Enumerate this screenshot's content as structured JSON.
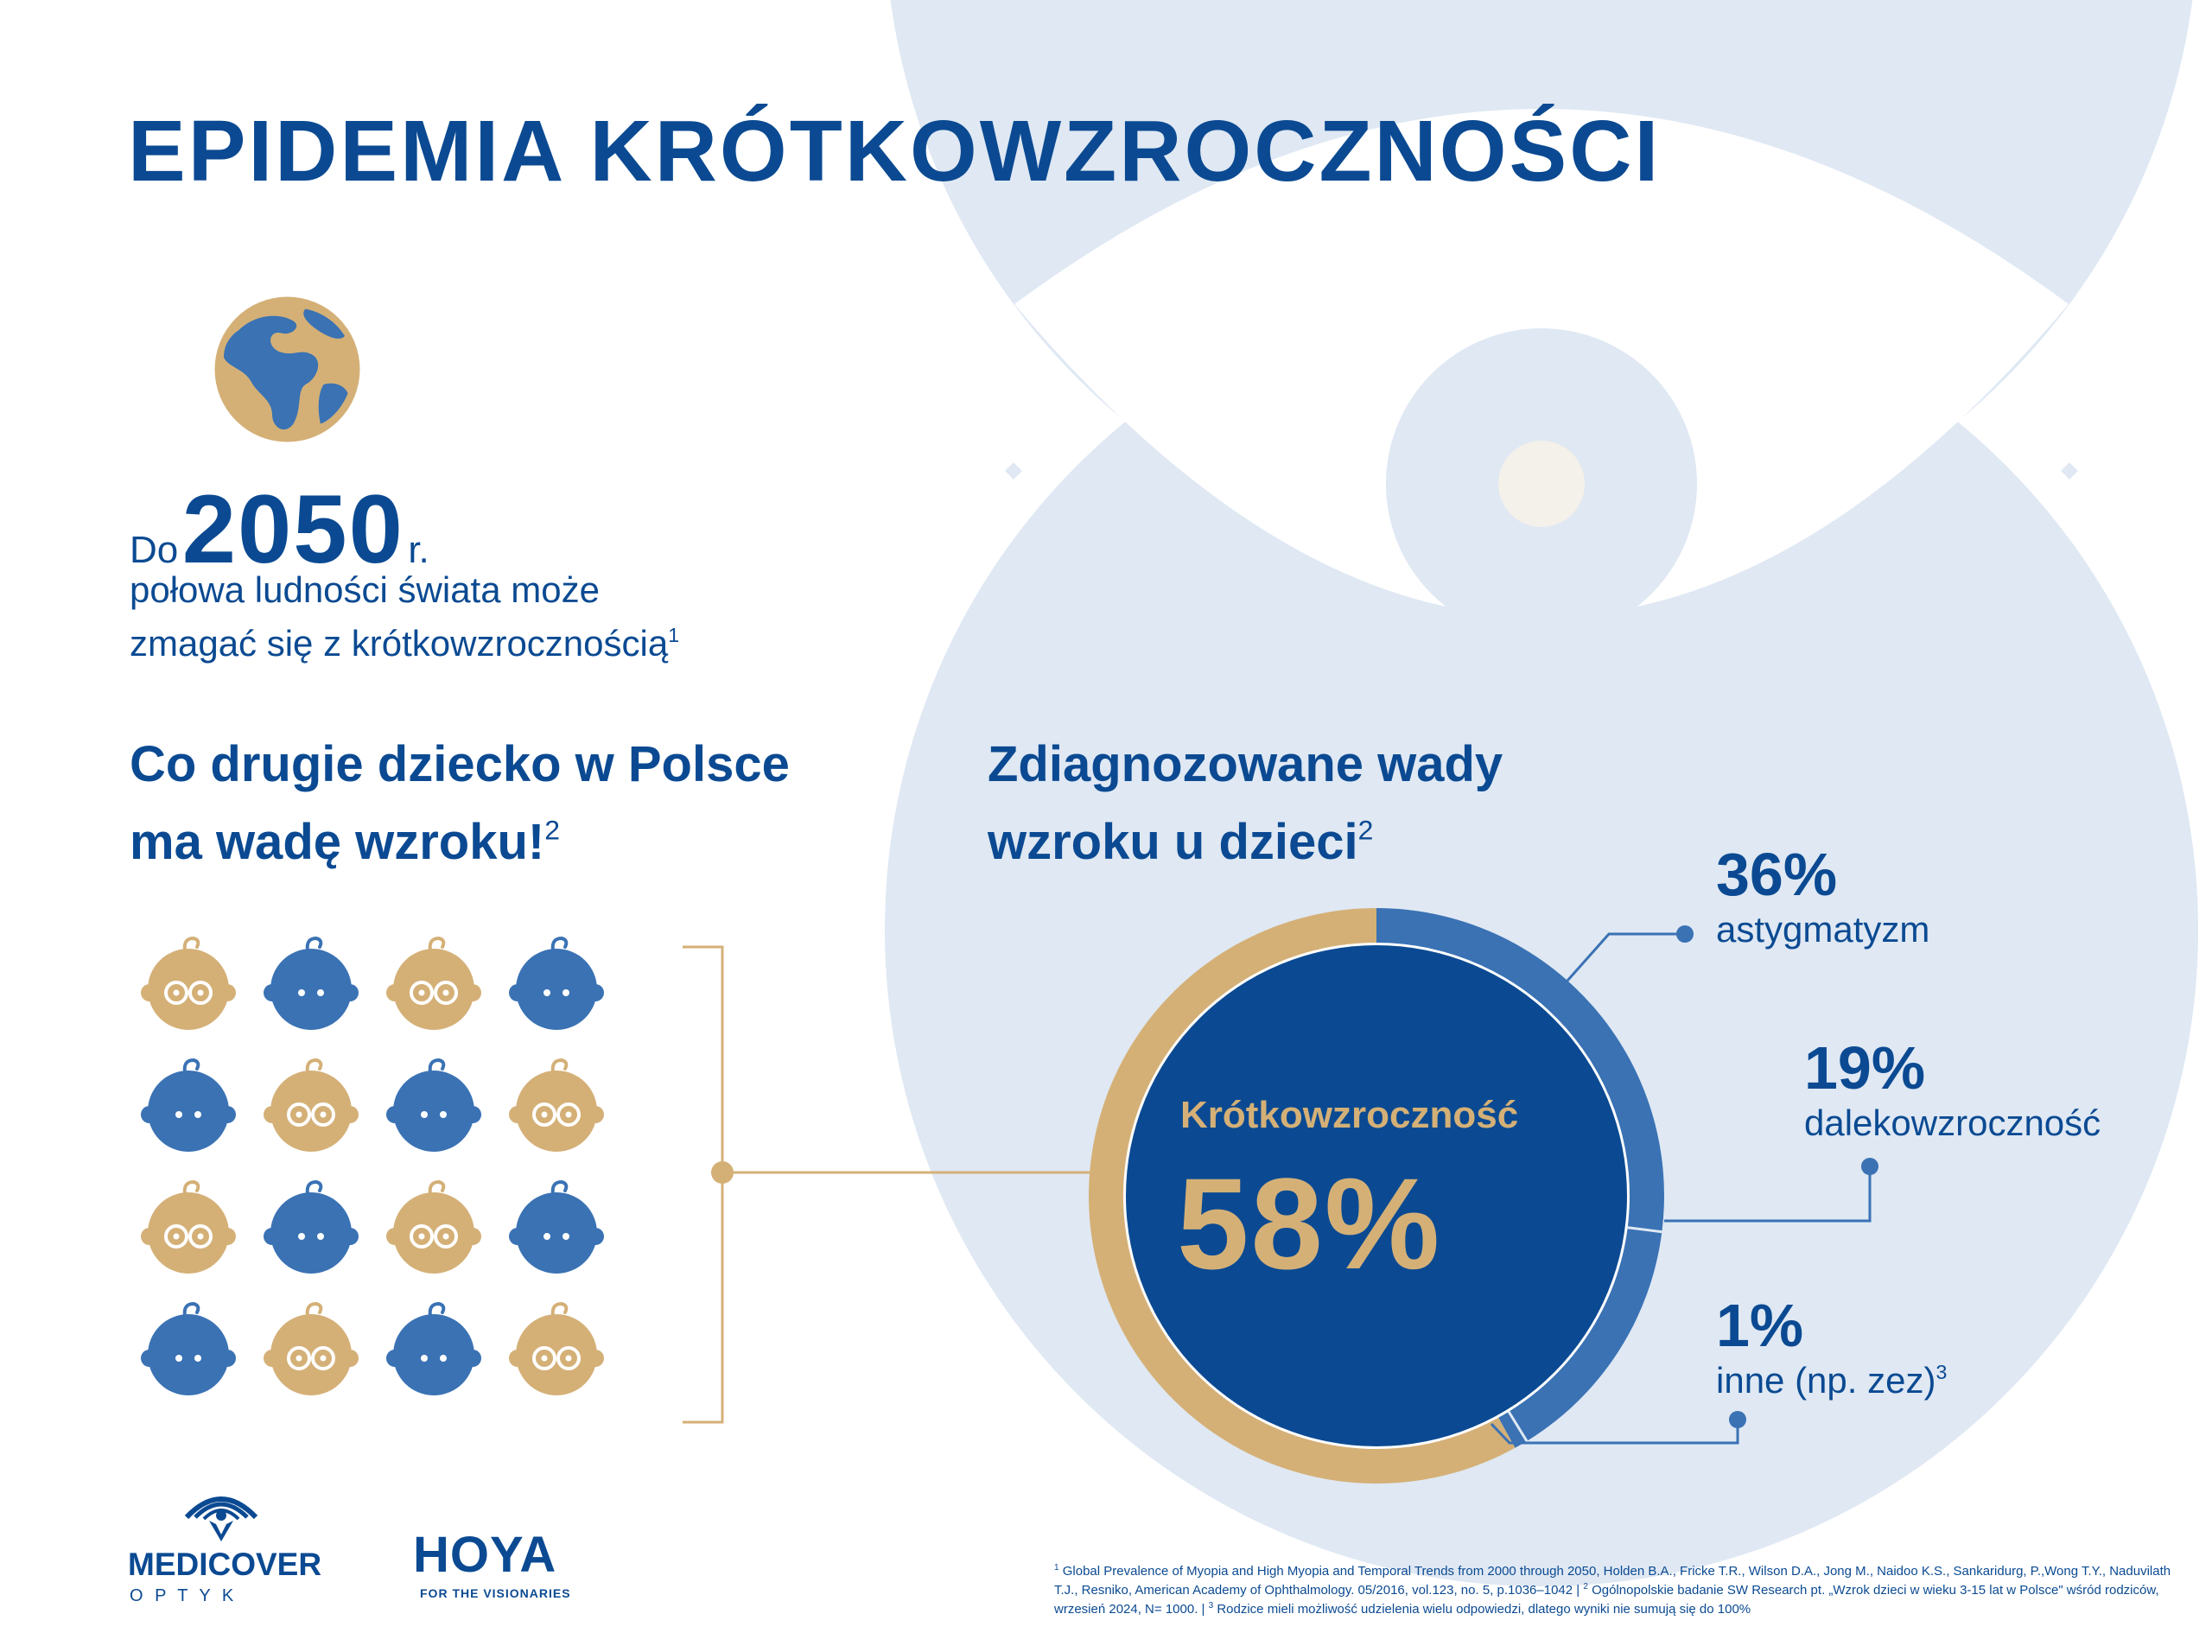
{
  "title": "EPIDEMIA KRÓTKOWZROCZNOŚCI",
  "global_stat": {
    "prefix": "Do",
    "year": "2050",
    "suffix": "r.",
    "line1": "połowa ludności świata może",
    "line2": "zmagać się z krótkowzrocznością",
    "ref": "1"
  },
  "children_heading": {
    "line1": "Co drugie dziecko w Polsce",
    "line2": "ma wadę wzroku!",
    "ref": "2"
  },
  "children_grid": {
    "rows": [
      [
        "glasses",
        "plain",
        "glasses",
        "plain"
      ],
      [
        "plain",
        "glasses",
        "plain",
        "glasses"
      ],
      [
        "glasses",
        "plain",
        "glasses",
        "plain"
      ],
      [
        "plain",
        "glasses",
        "plain",
        "glasses"
      ]
    ],
    "colors": {
      "glasses": "#d4b077",
      "plain": "#3a72b4"
    }
  },
  "diagnosed_heading": {
    "line1": "Zdiagnozowane wady",
    "line2": "wzroku u dzieci",
    "ref": "2"
  },
  "donut": {
    "center_label": "Krótkowzroczność",
    "center_value": "58%",
    "segments": [
      {
        "name": "krótkowzroczność",
        "value": 58,
        "color": "#d4b077"
      },
      {
        "name": "astygmatyzm",
        "value": 36,
        "color": "#3a72b4"
      },
      {
        "name": "dalekowzroczność",
        "value": 19,
        "color": "#3a72b4"
      },
      {
        "name": "inne",
        "value": 1,
        "color": "#3a72b4"
      }
    ]
  },
  "callouts": [
    {
      "percent": "36%",
      "label": "astygmatyzm",
      "ref": ""
    },
    {
      "percent": "19%",
      "label": "dalekowzroczność",
      "ref": ""
    },
    {
      "percent": "1%",
      "label": "inne (np. zez)",
      "ref": "3"
    }
  ],
  "logos": {
    "medicover": {
      "name": "MEDICOVER",
      "sub": "O P T Y K"
    },
    "hoya": {
      "name": "HOYA",
      "tagline": "FOR THE VISIONARIES"
    }
  },
  "footnotes": {
    "f1_num": "1",
    "f1": "Global Prevalence of Myopia and High Myopia and Temporal Trends from 2000 through 2050, Holden B.A., Fricke T.R., Wilson D.A., Jong M., Naidoo K.S., Sankaridurg, P.,Wong T.Y., Naduvilath T.J., Resniko, American Academy of Ophthalmology. 05/2016, vol.123, no. 5, p.1036–1042 |",
    "f2_num": "2",
    "f2": "Ogólnopolskie badanie SW Research pt. „Wzrok dzieci w wieku 3-15 lat w Polsce\" wśród rodziców, wrzesień 2024, N= 1000. |",
    "f3_num": "3",
    "f3": "Rodzice mieli możliwość udzielenia wielu odpowiedzi, dlatego wyniki nie sumują się do 100%"
  },
  "colors": {
    "navy": "#0b4a92",
    "mid_blue": "#3a72b4",
    "gold": "#d4b077",
    "light_blue": "#dfe8f3",
    "pupil": "#f4f1ea"
  }
}
